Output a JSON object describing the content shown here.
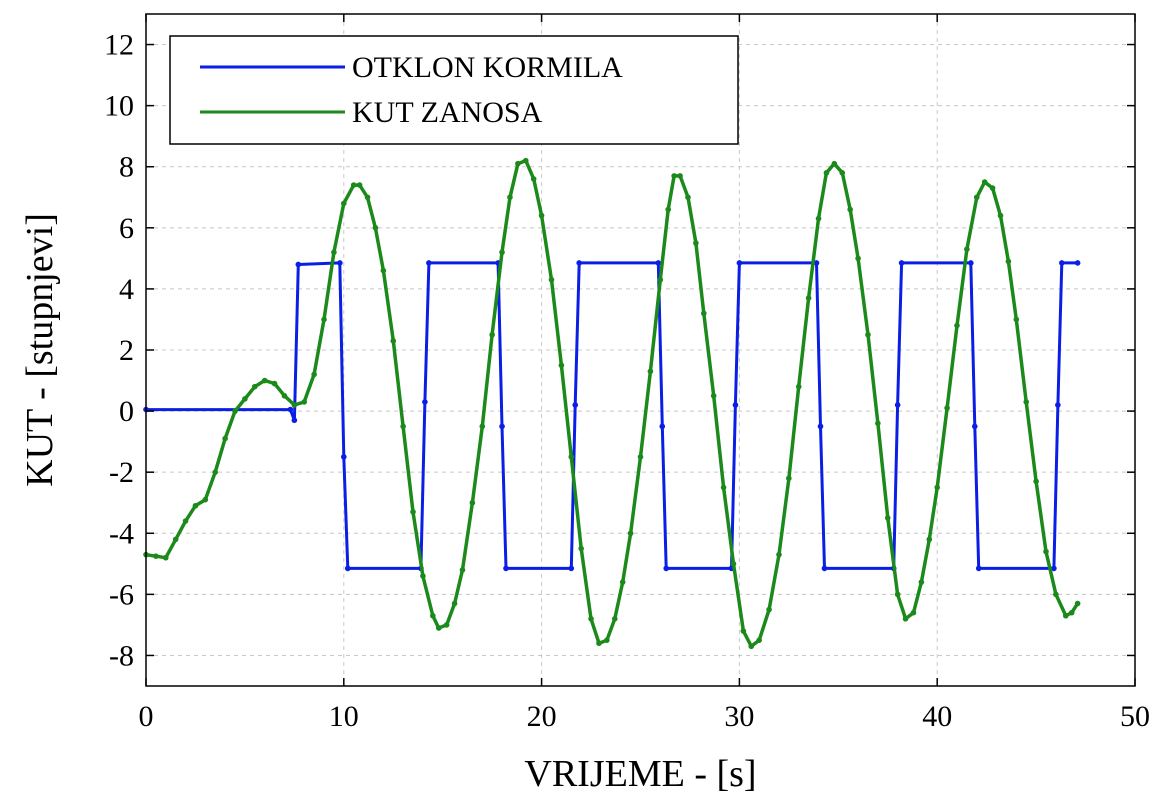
{
  "chart_data": {
    "type": "line",
    "title": "",
    "xlabel": "VRIJEME - [s]",
    "ylabel": "KUT - [stupnjevi]",
    "xlim": [
      0,
      50
    ],
    "ylim": [
      -9,
      13
    ],
    "xticks": [
      0,
      10,
      20,
      30,
      40,
      50
    ],
    "yticks": [
      -8,
      -6,
      -4,
      -2,
      0,
      2,
      4,
      6,
      8,
      10,
      12
    ],
    "grid": true,
    "legend_position": "top-left",
    "series": [
      {
        "name": "OTKLON KORMILA",
        "color": "#0a1ee6",
        "x": [
          0,
          7.3,
          7.5,
          7.7,
          9.8,
          10.0,
          10.2,
          13.9,
          14.1,
          14.3,
          17.8,
          18.0,
          18.2,
          21.5,
          21.7,
          21.9,
          25.9,
          26.1,
          26.3,
          29.6,
          29.8,
          30.0,
          33.9,
          34.1,
          34.3,
          37.8,
          38.0,
          38.2,
          41.7,
          41.9,
          42.1,
          45.9,
          46.1,
          46.3,
          47.1
        ],
        "y": [
          0.05,
          0.05,
          -0.3,
          4.8,
          4.85,
          -1.5,
          -5.15,
          -5.15,
          0.3,
          4.85,
          4.85,
          -0.5,
          -5.15,
          -5.15,
          0.2,
          4.85,
          4.85,
          -0.5,
          -5.15,
          -5.15,
          0.2,
          4.85,
          4.85,
          -0.5,
          -5.15,
          -5.15,
          0.2,
          4.85,
          4.85,
          -0.5,
          -5.15,
          -5.15,
          0.2,
          4.85,
          4.85
        ]
      },
      {
        "name": "KUT ZANOSA",
        "color": "#1b8a1b",
        "x": [
          0,
          0.5,
          1.0,
          1.5,
          2.0,
          2.5,
          3.0,
          3.5,
          4.0,
          4.5,
          5.0,
          5.5,
          6.0,
          6.5,
          7.0,
          7.5,
          8.0,
          8.5,
          9.0,
          9.5,
          10.0,
          10.5,
          10.8,
          11.2,
          11.6,
          12.0,
          12.5,
          13.0,
          13.5,
          14.0,
          14.5,
          14.8,
          15.2,
          15.6,
          16.0,
          16.5,
          17.0,
          17.5,
          18.0,
          18.4,
          18.8,
          19.2,
          19.6,
          20.0,
          20.5,
          21.0,
          21.5,
          22.0,
          22.5,
          22.9,
          23.3,
          23.7,
          24.1,
          24.5,
          25.0,
          25.5,
          26.0,
          26.4,
          26.7,
          27.0,
          27.4,
          27.8,
          28.2,
          28.7,
          29.2,
          29.7,
          30.2,
          30.6,
          31.0,
          31.5,
          32.0,
          32.5,
          33.0,
          33.5,
          34.0,
          34.4,
          34.8,
          35.2,
          35.6,
          36.0,
          36.5,
          37.0,
          37.5,
          38.0,
          38.4,
          38.8,
          39.2,
          39.6,
          40.0,
          40.5,
          41.0,
          41.5,
          42.0,
          42.4,
          42.8,
          43.2,
          43.6,
          44.0,
          44.5,
          45.0,
          45.5,
          46.0,
          46.5,
          46.8,
          47.1
        ],
        "y": [
          -4.7,
          -4.75,
          -4.8,
          -4.2,
          -3.6,
          -3.1,
          -2.9,
          -2.0,
          -0.9,
          0.0,
          0.4,
          0.8,
          1.0,
          0.9,
          0.5,
          0.2,
          0.3,
          1.2,
          3.0,
          5.2,
          6.8,
          7.4,
          7.4,
          7.0,
          6.0,
          4.6,
          2.3,
          -0.5,
          -3.3,
          -5.4,
          -6.7,
          -7.1,
          -7.0,
          -6.3,
          -5.2,
          -3.0,
          -0.5,
          2.5,
          5.2,
          7.0,
          8.1,
          8.2,
          7.6,
          6.4,
          4.3,
          1.5,
          -1.5,
          -4.5,
          -6.8,
          -7.6,
          -7.5,
          -6.8,
          -5.6,
          -4.0,
          -1.5,
          1.3,
          4.3,
          6.6,
          7.7,
          7.7,
          7.0,
          5.5,
          3.2,
          0.5,
          -2.5,
          -5.0,
          -7.2,
          -7.7,
          -7.5,
          -6.5,
          -4.7,
          -2.2,
          0.8,
          3.7,
          6.3,
          7.8,
          8.1,
          7.8,
          6.6,
          5.0,
          2.5,
          -0.4,
          -3.5,
          -6.0,
          -6.8,
          -6.6,
          -5.6,
          -4.2,
          -2.5,
          0.1,
          2.8,
          5.3,
          7.0,
          7.5,
          7.3,
          6.4,
          4.9,
          3.0,
          0.3,
          -2.3,
          -4.6,
          -6.0,
          -6.7,
          -6.6,
          -6.3
        ]
      }
    ]
  }
}
